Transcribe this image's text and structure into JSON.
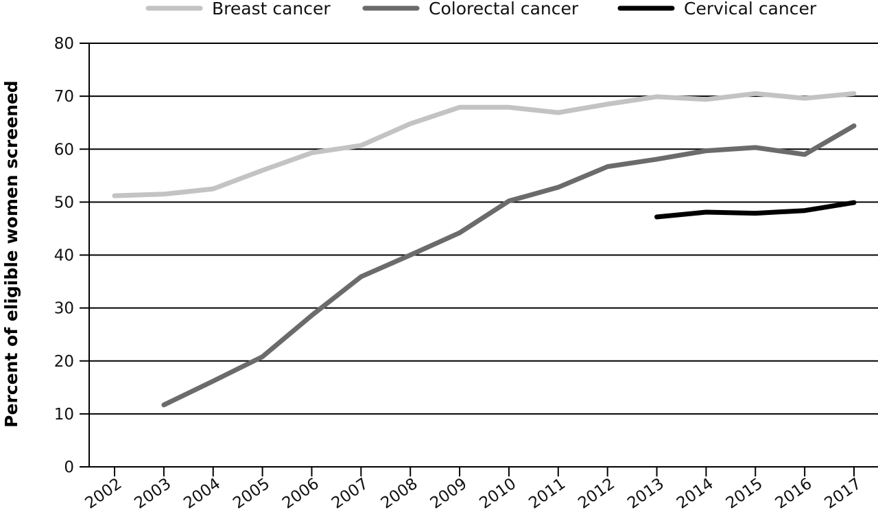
{
  "chart_data": {
    "type": "line",
    "title": "",
    "xlabel": "",
    "ylabel": "Percent of eligible women screened",
    "x": [
      "2002",
      "2003",
      "2004",
      "2005",
      "2006",
      "2007",
      "2008",
      "2009",
      "2010",
      "2011",
      "2012",
      "2013",
      "2014",
      "2015",
      "2016",
      "2017"
    ],
    "ylim": [
      0,
      80
    ],
    "yticks": [
      0,
      10,
      20,
      30,
      40,
      50,
      60,
      70,
      80
    ],
    "grid": "horizontal",
    "legend_position": "top",
    "series": [
      {
        "name": "Breast cancer",
        "color": "#c3c3c3",
        "values": [
          51.2,
          51.5,
          52.5,
          56.0,
          59.3,
          60.7,
          64.8,
          67.9,
          67.9,
          66.9,
          68.5,
          69.9,
          69.4,
          70.5,
          69.6,
          70.5
        ]
      },
      {
        "name": "Colorectal cancer",
        "color": "#6b6b6b",
        "values": [
          null,
          11.7,
          16.2,
          20.8,
          28.6,
          35.9,
          40.0,
          44.2,
          50.2,
          52.8,
          56.7,
          58.1,
          59.7,
          60.3,
          59.0,
          64.4
        ]
      },
      {
        "name": "Cervical cancer",
        "color": "#000000",
        "values": [
          null,
          null,
          null,
          null,
          null,
          null,
          null,
          null,
          null,
          null,
          null,
          47.2,
          48.1,
          47.9,
          48.4,
          49.9
        ]
      }
    ]
  }
}
